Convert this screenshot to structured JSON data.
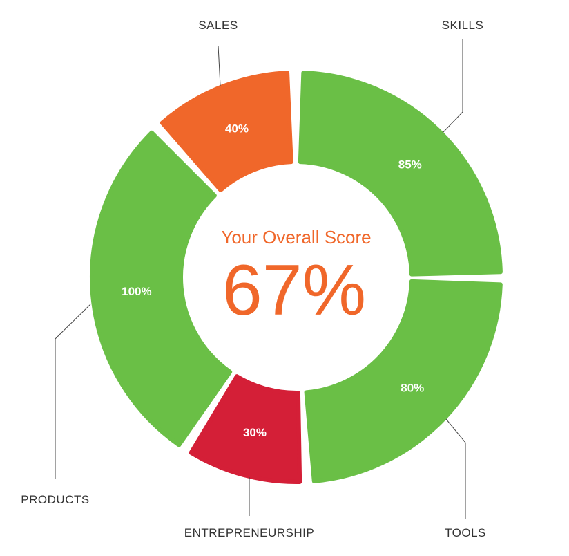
{
  "chart_data": {
    "type": "pie",
    "variant": "donut",
    "title": "Your Overall Score",
    "overall_score": "67%",
    "segments": [
      {
        "name": "SKILLS",
        "value": 85,
        "label": "85%",
        "color": "#6abf46"
      },
      {
        "name": "TOOLS",
        "value": 80,
        "label": "80%",
        "color": "#6abf46"
      },
      {
        "name": "ENTREPRENEURSHIP",
        "value": 30,
        "label": "30%",
        "color": "#d41f37"
      },
      {
        "name": "PRODUCTS",
        "value": 100,
        "label": "100%",
        "color": "#6abf46"
      },
      {
        "name": "SALES",
        "value": 40,
        "label": "40%",
        "color": "#f0672a"
      }
    ],
    "accent_color": "#f0672a"
  }
}
